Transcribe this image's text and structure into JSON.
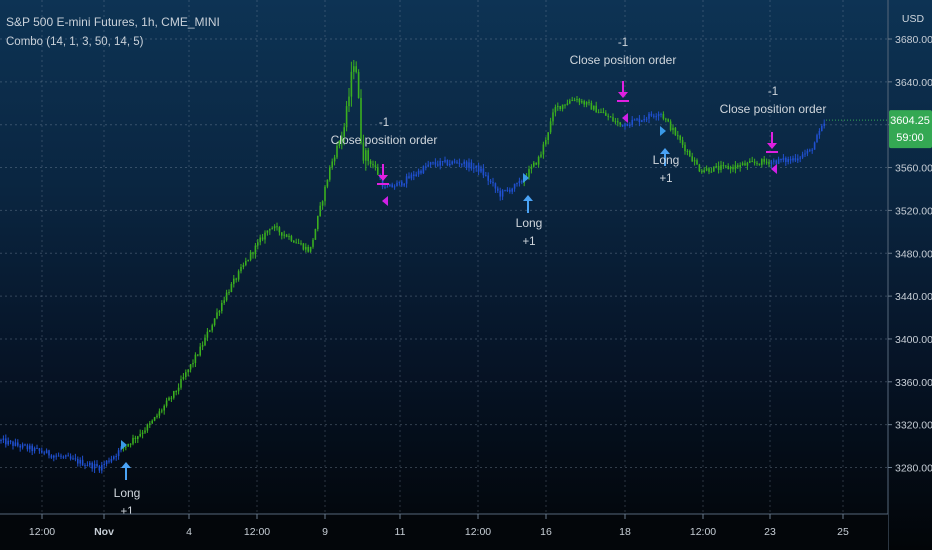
{
  "header": {
    "title": "S&P 500 E-mini Futures, 1h, CME_MINI",
    "indicator": "Combo (14, 1, 3, 50, 14, 5)",
    "currency": "USD"
  },
  "price_scale": {
    "ticks": [
      "3680.00",
      "3640.00",
      "3600.00",
      "3560.00",
      "3520.00",
      "3480.00",
      "3440.00",
      "3400.00",
      "3360.00",
      "3320.00",
      "3280.00"
    ],
    "last_price": "3604.25",
    "countdown": "59:00"
  },
  "time_axis": {
    "labels": [
      "12:00",
      "Nov",
      "4",
      "12:00",
      "9",
      "11",
      "12:00",
      "16",
      "18",
      "12:00",
      "23",
      "25"
    ]
  },
  "signals": [
    {
      "type": "long",
      "label": "Long",
      "qty": "+1",
      "time": "Nov 2"
    },
    {
      "type": "close",
      "label": "Close position order",
      "qty": "-1",
      "time": "Nov 10"
    },
    {
      "type": "long",
      "label": "Long",
      "qty": "+1",
      "time": "Nov 15"
    },
    {
      "type": "close",
      "label": "Close position order",
      "qty": "-1",
      "time": "Nov 17"
    },
    {
      "type": "long",
      "label": "Long",
      "qty": "+1",
      "time": "Nov 19"
    },
    {
      "type": "close",
      "label": "Close position order",
      "qty": "-1",
      "time": "Nov 23"
    }
  ],
  "colors": {
    "long_regime": "#3bb01f",
    "flat_regime": "#2050d0",
    "long_marker": "#4aa3f5",
    "close_marker": "#e020e0",
    "grid": "#8a9bb0",
    "last_price_bg": "#34a853",
    "text": "#c9d1d9"
  },
  "chart_data": {
    "type": "candlestick",
    "title": "S&P 500 E-mini Futures, 1h, CME_MINI",
    "y_axis_unit": "USD",
    "ylim": [
      3248,
      3690
    ],
    "grid": true,
    "approx_path": [
      {
        "t": "Oct 30 12:00",
        "price": 3300
      },
      {
        "t": "Nov 1",
        "price": 3280
      },
      {
        "t": "Nov 2",
        "price": 3295
      },
      {
        "t": "Nov 3",
        "price": 3345
      },
      {
        "t": "Nov 4",
        "price": 3395
      },
      {
        "t": "Nov 5",
        "price": 3470
      },
      {
        "t": "Nov 6",
        "price": 3505
      },
      {
        "t": "Nov 8",
        "price": 3490
      },
      {
        "t": "Nov 9 high",
        "price": 3670
      },
      {
        "t": "Nov 10",
        "price": 3530
      },
      {
        "t": "Nov 11",
        "price": 3560
      },
      {
        "t": "Nov 12",
        "price": 3565
      },
      {
        "t": "Nov 13",
        "price": 3550
      },
      {
        "t": "Nov 15",
        "price": 3540
      },
      {
        "t": "Nov 16",
        "price": 3615
      },
      {
        "t": "Nov 17",
        "price": 3625
      },
      {
        "t": "Nov 18",
        "price": 3610
      },
      {
        "t": "Nov 19",
        "price": 3600
      },
      {
        "t": "Nov 20",
        "price": 3560
      },
      {
        "t": "Nov 22",
        "price": 3570
      },
      {
        "t": "Nov 23",
        "price": 3565
      },
      {
        "t": "Nov 24",
        "price": 3604
      }
    ]
  }
}
